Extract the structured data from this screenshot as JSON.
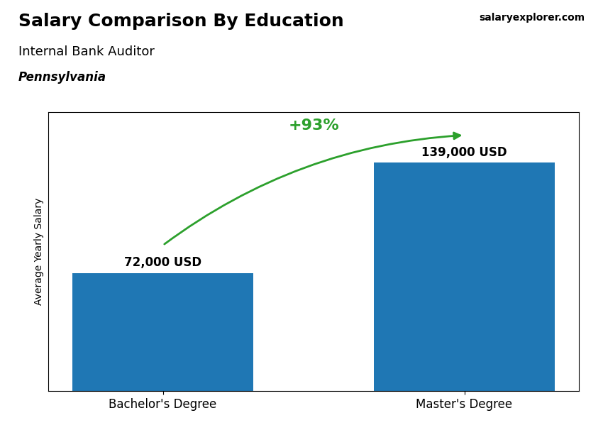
{
  "chart_data": {
    "type": "bar",
    "title": "Salary Comparison By Education",
    "subtitle": "Internal Bank Auditor",
    "location": "Pennsylvania",
    "watermark": "salaryexplorer.com",
    "ylabel": "Average Yearly Salary",
    "categories": [
      "Bachelor's Degree",
      "Master's Degree"
    ],
    "values": [
      72000,
      139000
    ],
    "value_labels": [
      "72,000 USD",
      "139,000 USD"
    ],
    "data_labels": true,
    "annotation": "+93%",
    "ylim": [
      0,
      170000
    ],
    "tick_labels": "x",
    "grid": false
  }
}
